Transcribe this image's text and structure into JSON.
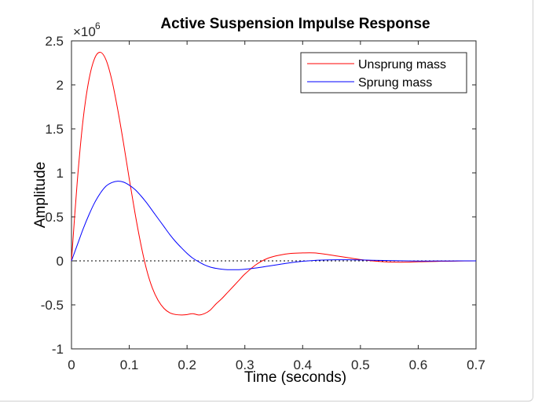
{
  "chart_data": {
    "type": "line",
    "title": "Active Suspension Impulse Response",
    "xlabel": "Time (seconds)",
    "ylabel": "Amplitude",
    "xlim": [
      0,
      0.7
    ],
    "ylim": [
      -1,
      2.5
    ],
    "x_ticks": [
      "0",
      "0.1",
      "0.2",
      "0.3",
      "0.4",
      "0.5",
      "0.6",
      "0.7"
    ],
    "y_ticks": [
      "-1",
      "-0.5",
      "0",
      "0.5",
      "1",
      "1.5",
      "2",
      "2.5"
    ],
    "y_exponent_base": "×10",
    "y_exponent_power": "6",
    "grid": false,
    "legend_position": "top-right",
    "zero_line": "dotted",
    "series": [
      {
        "name": "Unsprung mass",
        "color": "#ff0000",
        "x": [
          0,
          0.01,
          0.02,
          0.03,
          0.04,
          0.05,
          0.06,
          0.07,
          0.08,
          0.09,
          0.1,
          0.11,
          0.12,
          0.13,
          0.14,
          0.15,
          0.16,
          0.17,
          0.18,
          0.19,
          0.2,
          0.21,
          0.22,
          0.23,
          0.24,
          0.25,
          0.26,
          0.27,
          0.28,
          0.29,
          0.3,
          0.32,
          0.34,
          0.36,
          0.38,
          0.4,
          0.42,
          0.44,
          0.46,
          0.48,
          0.5,
          0.52,
          0.54,
          0.56,
          0.58,
          0.6,
          0.62,
          0.64,
          0.66,
          0.68,
          0.7
        ],
        "y": [
          0,
          0.9,
          1.6,
          2.05,
          2.3,
          2.37,
          2.28,
          2.05,
          1.72,
          1.34,
          0.93,
          0.54,
          0.19,
          -0.1,
          -0.31,
          -0.45,
          -0.54,
          -0.59,
          -0.61,
          -0.615,
          -0.61,
          -0.6,
          -0.615,
          -0.6,
          -0.56,
          -0.49,
          -0.43,
          -0.36,
          -0.29,
          -0.22,
          -0.15,
          -0.04,
          0.03,
          0.065,
          0.085,
          0.09,
          0.09,
          0.075,
          0.055,
          0.035,
          0.015,
          0.0,
          -0.01,
          -0.015,
          -0.015,
          -0.01,
          -0.008,
          -0.005,
          -0.003,
          -0.001,
          0
        ]
      },
      {
        "name": "Sprung mass",
        "color": "#0000ff",
        "x": [
          0,
          0.01,
          0.02,
          0.03,
          0.04,
          0.05,
          0.06,
          0.07,
          0.08,
          0.09,
          0.1,
          0.11,
          0.12,
          0.13,
          0.14,
          0.15,
          0.16,
          0.17,
          0.18,
          0.19,
          0.2,
          0.21,
          0.22,
          0.23,
          0.24,
          0.25,
          0.26,
          0.27,
          0.28,
          0.29,
          0.3,
          0.32,
          0.34,
          0.36,
          0.38,
          0.4,
          0.42,
          0.44,
          0.46,
          0.48,
          0.5,
          0.52,
          0.54,
          0.56,
          0.58,
          0.6,
          0.62,
          0.64,
          0.66,
          0.68,
          0.7
        ],
        "y": [
          0,
          0.18,
          0.36,
          0.52,
          0.66,
          0.77,
          0.85,
          0.89,
          0.905,
          0.895,
          0.86,
          0.81,
          0.74,
          0.66,
          0.57,
          0.48,
          0.39,
          0.3,
          0.22,
          0.15,
          0.085,
          0.03,
          -0.01,
          -0.045,
          -0.07,
          -0.085,
          -0.095,
          -0.1,
          -0.1,
          -0.1,
          -0.095,
          -0.08,
          -0.06,
          -0.04,
          -0.02,
          -0.005,
          0.005,
          0.01,
          0.012,
          0.012,
          0.01,
          0.007,
          0.004,
          0.002,
          0.0,
          -0.002,
          -0.002,
          -0.001,
          -0.001,
          0,
          0
        ]
      }
    ]
  }
}
